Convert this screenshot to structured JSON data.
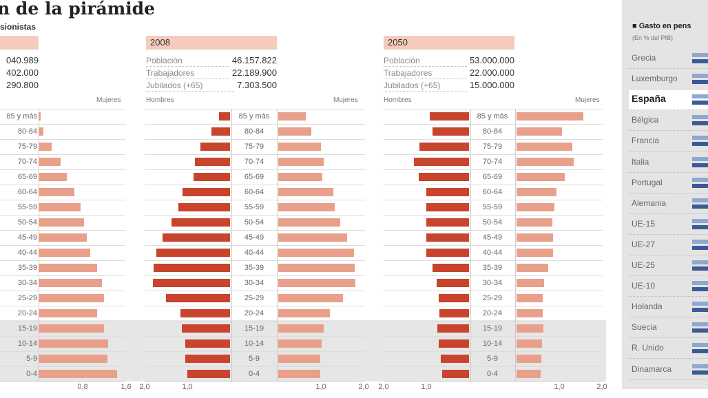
{
  "title": "n de la pirámide",
  "subtitle": "sionistas",
  "left_stats": [
    "040.989",
    "402.000",
    "290.800"
  ],
  "panels": [
    {
      "year": "2008",
      "stats": [
        {
          "label": "Población",
          "value": "46.157.822"
        },
        {
          "label": "Trabajadores",
          "value": "22.189.900"
        },
        {
          "label": "Jubilados (+65)",
          "value": "7.303.500"
        }
      ],
      "men_label": "Hombres",
      "women_label": "Mujeres"
    },
    {
      "year": "2050",
      "stats": [
        {
          "label": "Población",
          "value": "53.000.000"
        },
        {
          "label": "Trabajadores",
          "value": "22.000.000"
        },
        {
          "label": "Jubilados (+65)",
          "value": "15.000.000"
        }
      ],
      "men_label": "Hombres",
      "women_label": "Mujeres"
    }
  ],
  "left_women_label": "Mujeres",
  "right_panel": {
    "title": "Gasto en pens",
    "unit": "(En % del PIB)",
    "legend_color": "#222",
    "countries": [
      "Grecia",
      "Luxemburgo",
      "España",
      "Bélgica",
      "Francia",
      "Italia",
      "Portugal",
      "Alemania",
      "UE-15",
      "UE-27",
      "UE-25",
      "UE-10",
      "Holanda",
      "Suecia",
      "R. Unido",
      "Dinamarca"
    ],
    "highlight": "España",
    "colors": [
      "#8fa8cf",
      "#3c5a96"
    ]
  },
  "chart_data": [
    {
      "type": "bar",
      "orientation": "horizontal",
      "categories": [
        "85 y más",
        "80-84",
        "75-79",
        "70-74",
        "65-69",
        "60-64",
        "55-59",
        "50-54",
        "45-49",
        "40-44",
        "35-39",
        "30-34",
        "25-29",
        "20-24",
        "15-19",
        "10-14",
        "5-9",
        "0-4"
      ],
      "series": [
        {
          "name": "Mujeres",
          "values": [
            0.04,
            0.09,
            0.24,
            0.4,
            0.51,
            0.65,
            0.76,
            0.83,
            0.88,
            0.94,
            1.06,
            1.15,
            1.19,
            1.06,
            1.19,
            1.26,
            1.25,
            1.43
          ]
        }
      ],
      "xticks": [
        "0,8",
        "1,6"
      ],
      "xlim": [
        0,
        1.6
      ],
      "color": "#e9a08b"
    },
    {
      "type": "bar",
      "orientation": "horizontal-pyramid",
      "title": "2008",
      "categories": [
        "85 y más",
        "80-84",
        "75-79",
        "70-74",
        "65-69",
        "60-64",
        "55-59",
        "50-54",
        "45-49",
        "40-44",
        "35-39",
        "30-34",
        "25-29",
        "20-24",
        "15-19",
        "10-14",
        "5-9",
        "0-4"
      ],
      "series": [
        {
          "name": "Hombres",
          "values": [
            0.26,
            0.44,
            0.69,
            0.82,
            0.85,
            1.11,
            1.21,
            1.37,
            1.58,
            1.73,
            1.79,
            1.81,
            1.5,
            1.16,
            1.13,
            1.05,
            1.05,
            1.0
          ],
          "color": "#c8442c"
        },
        {
          "name": "Mujeres",
          "values": [
            0.65,
            0.77,
            1.0,
            1.06,
            1.03,
            1.29,
            1.32,
            1.45,
            1.61,
            1.77,
            1.79,
            1.81,
            1.52,
            1.21,
            1.06,
            1.02,
            0.98,
            0.98
          ],
          "color": "#e9a08b"
        }
      ],
      "xticks_left": [
        "2,0",
        "1,0"
      ],
      "xticks_right": [
        "1,0",
        "2,0"
      ],
      "xlim": [
        0,
        2
      ]
    },
    {
      "type": "bar",
      "orientation": "horizontal-pyramid",
      "title": "2050",
      "categories": [
        "85 y más",
        "80-84",
        "75-79",
        "70-74",
        "65-69",
        "60-64",
        "55-59",
        "50-54",
        "45-49",
        "40-44",
        "35-39",
        "30-34",
        "25-29",
        "20-24",
        "15-19",
        "10-14",
        "5-9",
        "0-4"
      ],
      "series": [
        {
          "name": "Hombres",
          "values": [
            0.92,
            0.85,
            1.16,
            1.29,
            1.18,
            1.0,
            1.0,
            1.0,
            1.0,
            1.0,
            0.85,
            0.76,
            0.71,
            0.69,
            0.74,
            0.71,
            0.66,
            0.63
          ],
          "color": "#c8442c"
        },
        {
          "name": "Mujeres",
          "values": [
            1.56,
            1.06,
            1.31,
            1.34,
            1.13,
            0.94,
            0.89,
            0.84,
            0.85,
            0.85,
            0.74,
            0.65,
            0.61,
            0.61,
            0.63,
            0.6,
            0.58,
            0.56
          ],
          "color": "#e9a08b"
        }
      ],
      "xticks_left": [
        "2,0",
        "1,0"
      ],
      "xticks_right": [
        "1,0",
        "2,0"
      ],
      "xlim": [
        0,
        2
      ]
    }
  ]
}
